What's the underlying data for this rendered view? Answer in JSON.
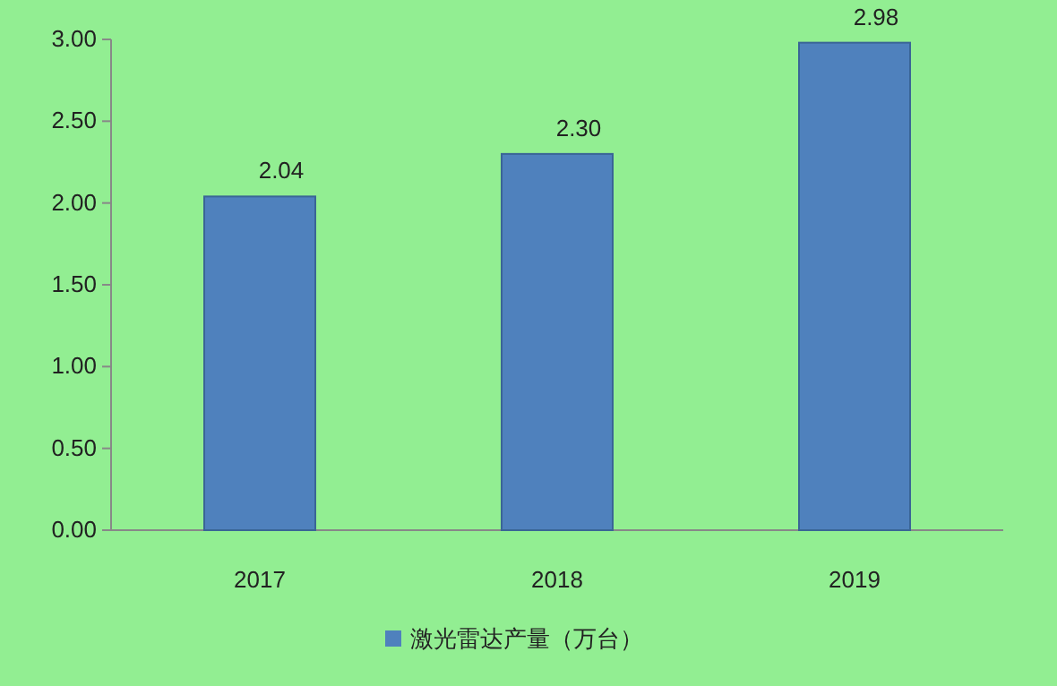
{
  "chart_data": {
    "type": "bar",
    "categories": [
      "2017",
      "2018",
      "2019"
    ],
    "series": [
      {
        "name": "激光雷达产量（万台）",
        "color": "#4f81bd",
        "values": [
          2.04,
          2.3,
          2.98
        ]
      }
    ],
    "value_labels": [
      "2.04",
      "2.30",
      "2.98"
    ],
    "ylim": [
      0,
      3
    ],
    "yticks": [
      {
        "value": 0,
        "label": "0.00"
      },
      {
        "value": 0.5,
        "label": "0.50"
      },
      {
        "value": 1,
        "label": "1.00"
      },
      {
        "value": 1.5,
        "label": "1.50"
      },
      {
        "value": 2,
        "label": "2.00"
      },
      {
        "value": 2.5,
        "label": "2.50"
      },
      {
        "value": 3,
        "label": "3.00"
      }
    ],
    "grid": false,
    "legend": "bottom"
  }
}
